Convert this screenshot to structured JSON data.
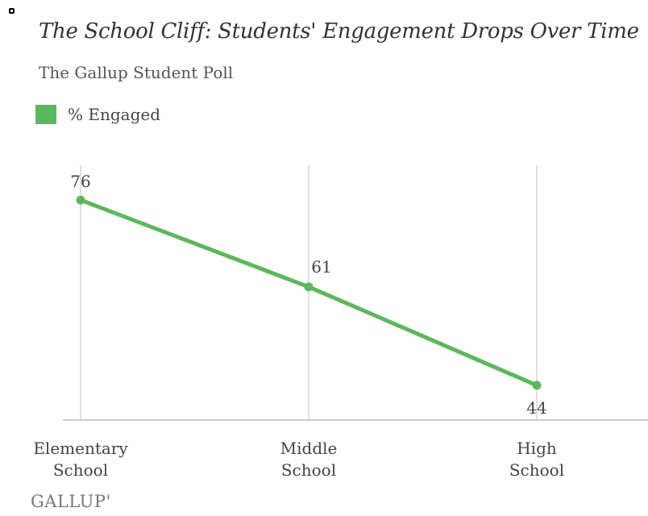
{
  "title": "The School Cliff: Students' Engagement Drops Over Time",
  "subtitle": "The Gallup Student Poll",
  "source": "GALLUP'",
  "colors": {
    "series": "#5cb85c",
    "grid": "#cccccc",
    "axis": "#bbbbbb"
  },
  "chart_data": {
    "type": "line",
    "title": "The School Cliff: Students' Engagement Drops Over Time",
    "subtitle": "The Gallup Student Poll",
    "xlabel": "",
    "ylabel": "",
    "categories": [
      [
        "Elementary",
        "School"
      ],
      [
        "Middle",
        "School"
      ],
      [
        "High",
        "School"
      ]
    ],
    "series": [
      {
        "name": "% Engaged",
        "values": [
          76,
          61,
          44
        ]
      }
    ],
    "data_labels": [
      "76",
      "61",
      "44"
    ],
    "ylim": [
      38,
      82
    ],
    "grid": "vertical",
    "legend": "top-left"
  }
}
